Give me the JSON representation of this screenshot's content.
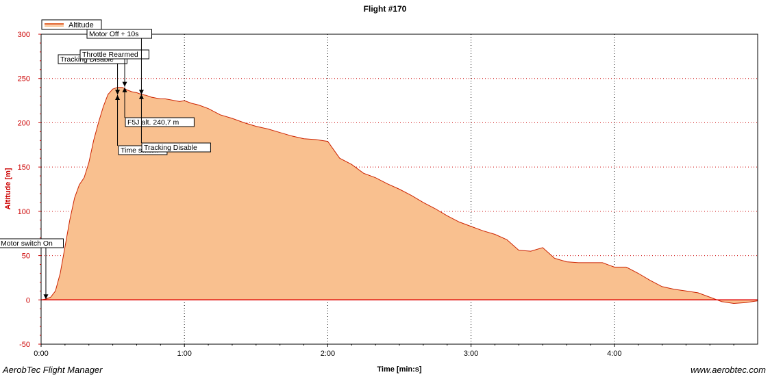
{
  "chart_data": {
    "type": "area",
    "title": "Flight #170",
    "xlabel": "Time [min:s]",
    "ylabel": "Altitude [m]",
    "xlim": [
      0,
      300
    ],
    "ylim": [
      -50,
      300
    ],
    "xticks": [
      0,
      60,
      120,
      180,
      240
    ],
    "xtick_labels": [
      "0:00",
      "1:00",
      "2:00",
      "3:00",
      "4:00"
    ],
    "yticks": [
      -50,
      0,
      50,
      100,
      150,
      200,
      250,
      300
    ],
    "ytick_labels": [
      "-50",
      "0",
      "50",
      "100",
      "150",
      "200",
      "250",
      "300"
    ],
    "grid": true,
    "legend": "top-left",
    "series": [
      {
        "name": "Altitude",
        "x": [
          0,
          2,
          4,
          6,
          8,
          10,
          12,
          14,
          16,
          18,
          20,
          22,
          24,
          26,
          28,
          30,
          32,
          34,
          36,
          38,
          40,
          42,
          44,
          46,
          48,
          50,
          52,
          54,
          56,
          58,
          60,
          63,
          66,
          70,
          75,
          80,
          85,
          90,
          95,
          100,
          105,
          110,
          115,
          120,
          125,
          130,
          135,
          140,
          145,
          150,
          155,
          160,
          165,
          170,
          175,
          180,
          185,
          190,
          195,
          200,
          205,
          210,
          215,
          220,
          225,
          230,
          235,
          240,
          245,
          250,
          255,
          260,
          265,
          270,
          275,
          280,
          285,
          290,
          295,
          300
        ],
        "y": [
          0,
          1,
          3,
          10,
          30,
          60,
          90,
          115,
          130,
          138,
          155,
          180,
          200,
          218,
          232,
          238,
          240,
          240,
          237,
          235,
          234,
          232,
          231,
          229,
          228,
          227,
          227,
          226,
          225,
          224,
          225,
          222,
          220,
          216,
          209,
          205,
          200,
          196,
          193,
          189,
          185,
          182,
          181,
          179,
          160,
          153,
          143,
          138,
          131,
          125,
          118,
          110,
          103,
          95,
          88,
          83,
          78,
          74,
          68,
          56,
          55,
          59,
          47,
          43,
          42,
          42,
          42,
          37,
          37,
          30,
          22,
          15,
          12,
          10,
          8,
          3,
          -2,
          -4,
          -3,
          -1
        ]
      }
    ],
    "annotations": [
      {
        "label": "Motor switch On",
        "x": 2,
        "y": 0
      },
      {
        "label": "Tracking Disable",
        "x": 32,
        "y": 231
      },
      {
        "label": "Throttle Rearmed",
        "x": 35,
        "y": 240
      },
      {
        "label": "Motor Off + 10s",
        "x": 42,
        "y": 231
      },
      {
        "label": "Time switch",
        "x": 32,
        "y": 232
      },
      {
        "label": "F5J alt. 240,7 m",
        "x": 35,
        "y": 240.7
      },
      {
        "label": "Tracking Disable",
        "x": 42,
        "y": 233
      }
    ]
  },
  "footer": {
    "left": "AerobTec Flight Manager",
    "right": "www.aerobtec.com"
  }
}
